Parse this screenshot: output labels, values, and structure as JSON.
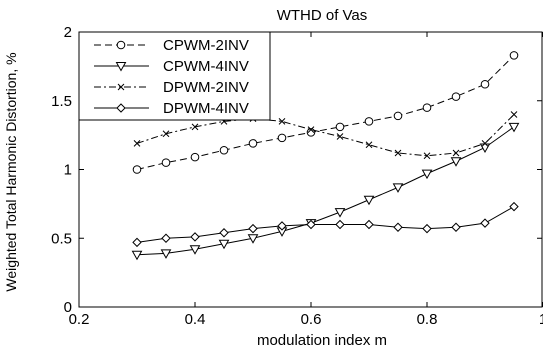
{
  "chart_data": {
    "type": "line",
    "title": "WTHD of Vas",
    "xlabel": "modulation index m",
    "ylabel": "Weighted Total Harmonic Distortion, %",
    "xlim": [
      0.2,
      1
    ],
    "ylim": [
      0,
      2
    ],
    "xticks": [
      "0.2",
      "0.4",
      "0.6",
      "0.8",
      "1"
    ],
    "yticks": [
      "0",
      "0.5",
      "1",
      "1.5",
      "2"
    ],
    "grid": false,
    "legend_position": "top-left",
    "x": [
      0.3,
      0.35,
      0.4,
      0.45,
      0.5,
      0.55,
      0.6,
      0.65,
      0.7,
      0.75,
      0.8,
      0.85,
      0.9,
      0.95
    ],
    "series": [
      {
        "name": "CPWM-2INV",
        "line_style": "dashed",
        "marker": "circle",
        "values": [
          1.0,
          1.05,
          1.09,
          1.14,
          1.19,
          1.23,
          1.27,
          1.31,
          1.35,
          1.39,
          1.45,
          1.53,
          1.62,
          1.83
        ]
      },
      {
        "name": "CPWM-4INV",
        "line_style": "solid",
        "marker": "triangle-down",
        "values": [
          0.38,
          0.39,
          0.42,
          0.46,
          0.5,
          0.55,
          0.61,
          0.69,
          0.78,
          0.87,
          0.97,
          1.06,
          1.16,
          1.31
        ]
      },
      {
        "name": "DPWM-2INV",
        "line_style": "dashdot",
        "marker": "x",
        "values": [
          1.19,
          1.26,
          1.31,
          1.35,
          1.37,
          1.35,
          1.29,
          1.24,
          1.18,
          1.12,
          1.1,
          1.12,
          1.19,
          1.4
        ]
      },
      {
        "name": "DPWM-4INV",
        "line_style": "solid",
        "marker": "diamond",
        "values": [
          0.47,
          0.5,
          0.51,
          0.54,
          0.57,
          0.59,
          0.6,
          0.6,
          0.6,
          0.58,
          0.57,
          0.58,
          0.61,
          0.73
        ]
      }
    ]
  }
}
